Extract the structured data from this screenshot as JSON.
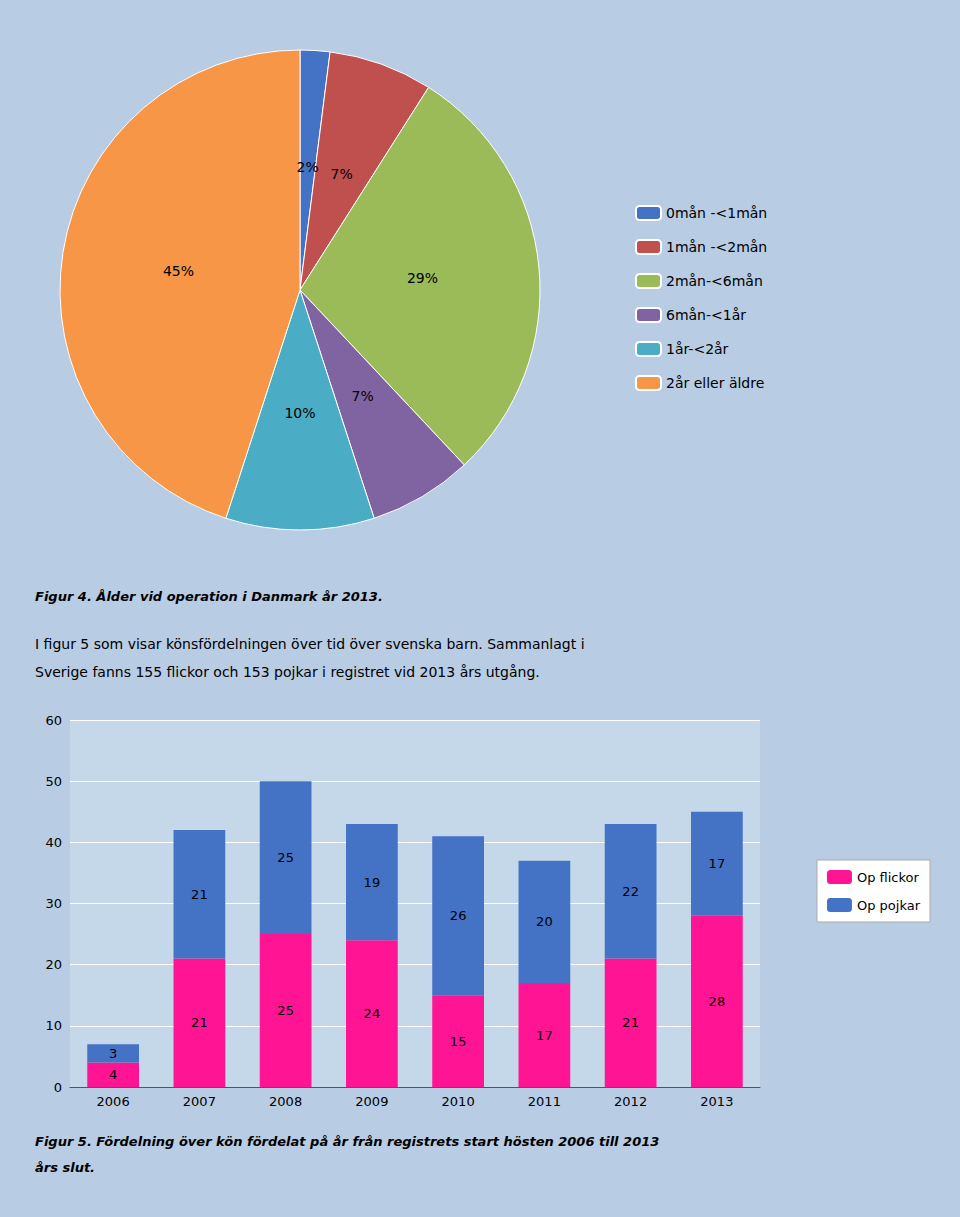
{
  "chart_data": [
    {
      "type": "pie",
      "title": "Figur 4. Ålder vid operation i Danmark år 2013.",
      "categories": [
        "0mån -<1mån",
        "1mån -<2mån",
        "2mån-<6mån",
        "6mån-<1år",
        "1år-<2år",
        "2år eller äldre"
      ],
      "values": [
        2,
        7,
        29,
        7,
        10,
        45
      ],
      "value_labels": [
        "2%",
        "7%",
        "29%",
        "7%",
        "10%",
        "45%"
      ],
      "colors": [
        "#4472c4",
        "#c0504d",
        "#9bbb59",
        "#8064a2",
        "#4bacc6",
        "#f79646"
      ],
      "data_labels": true,
      "legend": "right"
    },
    {
      "type": "bar",
      "title": "Figur 5. Fördelning över kön fördelat på år från registrets start hösten 2006 till 2013",
      "subtitle": "års slut.",
      "annotations": [
        "I figur 5 som visar könsfördelningen över tid över svenska barn. Sammanlagt i",
        "Sverige fanns 155 flickor och 153 pojkar i registret vid 2013 års utgång."
      ],
      "categories": [
        "2006",
        "2007",
        "2008",
        "2009",
        "2010",
        "2011",
        "2012",
        "2013"
      ],
      "series": [
        {
          "name": "Op flickor",
          "color": "#ff1493",
          "values": [
            4,
            21,
            25,
            24,
            15,
            17,
            21,
            28
          ]
        },
        {
          "name": "Op pojkar",
          "color": "#4472c4",
          "values": [
            3,
            21,
            25,
            19,
            26,
            20,
            22,
            17
          ]
        }
      ],
      "stacked": true,
      "data_labels": true,
      "ylim": [
        0,
        60
      ],
      "yticks": [
        0,
        10,
        20,
        30,
        40,
        50,
        60
      ],
      "grid": true,
      "legend": "right"
    }
  ]
}
